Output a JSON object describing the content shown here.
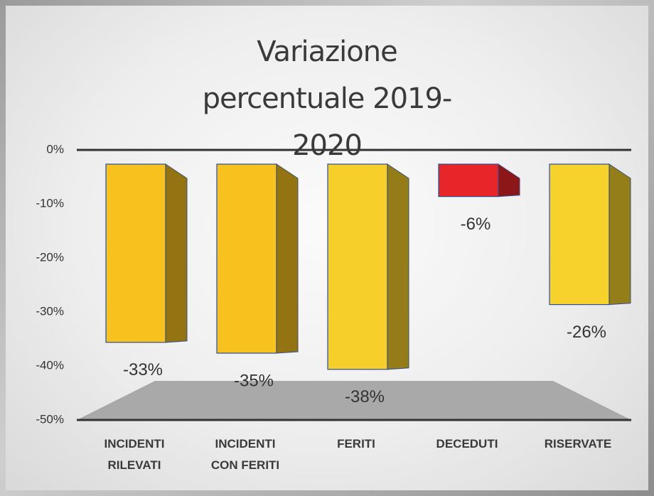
{
  "chart_data": {
    "type": "bar",
    "title": "Variazione percentuale 2019-2020",
    "categories": [
      "INCIDENTI RILEVATI",
      "INCIDENTI CON FERITI",
      "FERITI",
      "DECEDUTI",
      "RISERVATE"
    ],
    "values": [
      -33,
      -35,
      -38,
      -6,
      -26
    ],
    "value_labels": [
      "-33%",
      "-35%",
      "-38%",
      "-6%",
      "-26%"
    ],
    "colors": [
      "#f7c21e",
      "#f7c21e",
      "#f7cf2a",
      "#e8262a",
      "#f7d22c"
    ],
    "ylim": [
      -50,
      0
    ],
    "yticks": [
      {
        "value": 0,
        "label": "0%"
      },
      {
        "value": -10,
        "label": "-10%"
      },
      {
        "value": -20,
        "label": "-20%"
      },
      {
        "value": -30,
        "label": "-30%"
      },
      {
        "value": -40,
        "label": "-40%"
      },
      {
        "value": -50,
        "label": "-50%"
      }
    ],
    "grid": false
  }
}
